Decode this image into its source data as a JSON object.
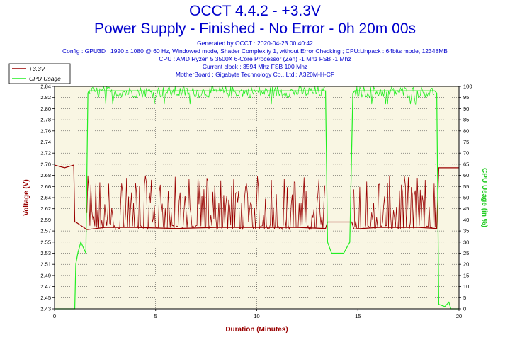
{
  "header": {
    "title": "OCCT 4.4.2 - +3.3V",
    "subtitle": "Power Supply - Finished - No Error - 0h 20m 00s",
    "info_lines": [
      "Generated by OCCT : 2020-04-23 00:40:42",
      "Config : GPU3D : 1920 x 1080 @ 60 Hz, Windowed mode, Shader Complexity 1, without Error Checking ; CPU:Linpack : 64bits mode, 12348MB",
      "CPU : AMD Ryzen 5 3500X 6-Core Processor (Zen) -1 Mhz FSB -1 Mhz",
      "Current clock : 3594 Mhz FSB 100 Mhz",
      "MotherBoard : Gigabyte Technology Co., Ltd.: A320M-H-CF"
    ]
  },
  "colors": {
    "voltage": "#990000",
    "cpu": "#22ee22",
    "plot_bg": "#f9f6e3",
    "right_axis_label": "#22cc22",
    "left_axis_label": "#990000",
    "x_axis_label": "#990000"
  },
  "chart_data": {
    "type": "line",
    "xlabel": "Duration (Minutes)",
    "ylabel": "Voltage (V)",
    "y2label": "CPU Usage (in %)",
    "xlim": [
      0,
      20
    ],
    "ylim": [
      2.43,
      2.84
    ],
    "y2lim": [
      0,
      100
    ],
    "x_ticks": [
      0,
      5,
      10,
      15,
      20
    ],
    "y_ticks": [
      "2.43",
      "2.45",
      "2.47",
      "2.49",
      "2.51",
      "2.53",
      "2.55",
      "2.57",
      "2.59",
      "2.62",
      "2.64",
      "2.66",
      "2.68",
      "2.70",
      "2.72",
      "2.74",
      "2.76",
      "2.78",
      "2.80",
      "2.82",
      "2.84"
    ],
    "y2_ticks": [
      0,
      5,
      10,
      15,
      20,
      25,
      30,
      35,
      40,
      45,
      50,
      55,
      60,
      65,
      70,
      75,
      80,
      85,
      90,
      95,
      100
    ],
    "grid": true,
    "legend_position": "top-left",
    "series": [
      {
        "name": "+3.3V",
        "axis": "left",
        "x": [
          0,
          0.5,
          0.95,
          1.0,
          1.05,
          1.6,
          2.5,
          4,
          6,
          8,
          10,
          12,
          13.4,
          13.5,
          14.7,
          14.8,
          16,
          17,
          18,
          18.9,
          19.0,
          20
        ],
        "y": [
          2.695,
          2.69,
          2.695,
          2.59,
          2.59,
          2.576,
          2.58,
          2.58,
          2.578,
          2.58,
          2.58,
          2.58,
          2.578,
          2.59,
          2.59,
          2.577,
          2.58,
          2.58,
          2.58,
          2.578,
          2.69,
          2.69
        ],
        "noise_band": {
          "low": 2.576,
          "high": 2.676,
          "ranges": [
            [
              1.6,
              13.4
            ],
            [
              14.8,
              18.9
            ]
          ]
        }
      },
      {
        "name": "CPU Usage",
        "axis": "right",
        "x": [
          0,
          1.0,
          1.05,
          1.15,
          1.3,
          1.55,
          1.65,
          1.7,
          13.4,
          13.5,
          13.7,
          14.0,
          14.3,
          14.6,
          14.75,
          14.85,
          18.8,
          18.9,
          19.0,
          19.3,
          19.5,
          19.6,
          20
        ],
        "y": [
          0,
          0,
          20,
          25,
          30,
          25,
          97,
          98,
          98,
          30,
          25,
          25,
          25,
          30,
          97,
          98,
          98,
          97,
          2,
          1,
          3,
          0,
          0
        ],
        "noise_band": {
          "low": 95,
          "high": 100,
          "ranges": [
            [
              1.7,
              13.4
            ],
            [
              14.85,
              18.8
            ]
          ]
        }
      }
    ]
  }
}
